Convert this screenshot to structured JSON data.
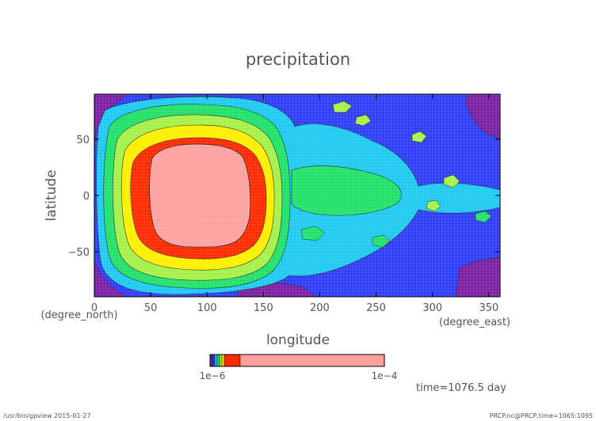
{
  "chart_data": {
    "type": "heatmap",
    "title": "precipitation",
    "xlabel": "longitude",
    "ylabel": "latitude",
    "x_unit": "(degree_east)",
    "y_unit": "(degree_north)",
    "xlim": [
      0,
      360
    ],
    "ylim": [
      -90,
      90
    ],
    "x_ticks": [
      0,
      50,
      100,
      150,
      200,
      250,
      300,
      350
    ],
    "y_ticks": [
      -50,
      0,
      50
    ],
    "x_tick_labels": [
      "0",
      "50",
      "100",
      "150",
      "200",
      "250",
      "300",
      "350"
    ],
    "y_tick_labels": [
      "−50",
      "0",
      "50"
    ],
    "colorbar": {
      "low_label": "1e−6",
      "high_label": "1e−4",
      "colors": [
        "#7a1fa2",
        "#2e3cf5",
        "#1fc8f0",
        "#22e06a",
        "#a6f04a",
        "#ffee00",
        "#ff2a00",
        "#ffa0a0"
      ]
    },
    "grid": true,
    "time_label": "time=1076.5  day"
  },
  "footer": {
    "left": "/usr/bin/gpview  2015-01-27",
    "right": "PRCP.nc@PRCP,time=1065:1095"
  }
}
